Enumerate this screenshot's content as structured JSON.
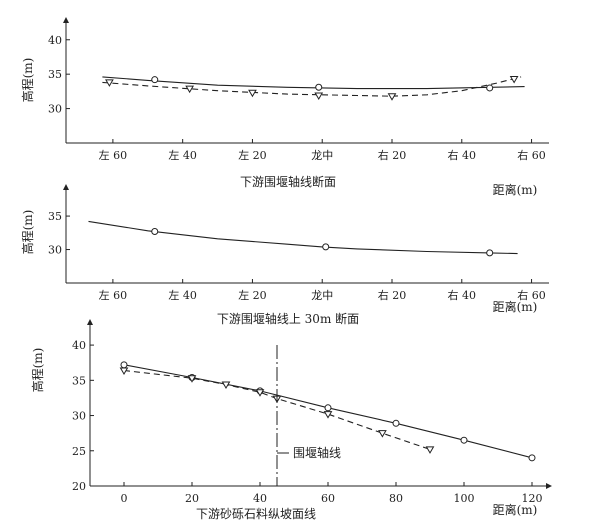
{
  "chart_data": [
    {
      "type": "line",
      "caption": "下游围堰轴线断面",
      "ylabel": "高程(m)",
      "xlabel": "距离(m)",
      "x_ticks": [
        "左 60",
        "左 40",
        "左 20",
        "龙中",
        "右 20",
        "右 40",
        "右 60"
      ],
      "y_ticks": [
        30,
        35,
        40
      ],
      "ylim": [
        25,
        42
      ],
      "xlim": [
        -70,
        65
      ],
      "series": [
        {
          "style": "solid",
          "marker": "circle",
          "x": [
            -63,
            -50,
            -30,
            -10,
            0,
            10,
            30,
            48,
            58
          ],
          "y": [
            34.6,
            34.1,
            33.4,
            33.1,
            33.0,
            32.9,
            32.9,
            33.1,
            33.2
          ],
          "marker_x": [
            -48,
            -1,
            48
          ],
          "marker_y": [
            34.2,
            33.1,
            33.0
          ]
        },
        {
          "style": "dashed",
          "marker": "triangle-down",
          "x": [
            -63,
            -50,
            -30,
            -10,
            0,
            10,
            20,
            30,
            40,
            50,
            57
          ],
          "y": [
            33.8,
            33.3,
            32.6,
            32.1,
            32.0,
            31.9,
            31.8,
            32.0,
            32.6,
            33.7,
            34.6
          ],
          "marker_x": [
            -61,
            -38,
            -20,
            -1,
            20,
            55
          ],
          "marker_y": [
            33.8,
            32.9,
            32.3,
            31.9,
            31.8,
            34.3
          ]
        }
      ]
    },
    {
      "type": "line",
      "caption": "下游围堰轴线上 30m 断面",
      "ylabel": "高程(m)",
      "xlabel": "距离(m)",
      "x_ticks": [
        "左 60",
        "左 40",
        "左 20",
        "龙中",
        "右 20",
        "右 40",
        "右 60"
      ],
      "y_ticks": [
        30,
        35
      ],
      "ylim": [
        25,
        38
      ],
      "xlim": [
        -70,
        65
      ],
      "series": [
        {
          "style": "solid",
          "marker": "circle",
          "x": [
            -67,
            -50,
            -30,
            -10,
            0,
            10,
            30,
            48,
            56
          ],
          "y": [
            34.2,
            32.8,
            31.6,
            30.8,
            30.4,
            30.1,
            29.7,
            29.5,
            29.4
          ],
          "marker_x": [
            -48,
            1,
            48
          ],
          "marker_y": [
            32.7,
            30.4,
            29.5
          ]
        }
      ]
    },
    {
      "type": "line",
      "caption": "下游砂砾石料纵坡面线",
      "ylabel": "高程(m)",
      "xlabel": "距离(m)",
      "x_ticks": [
        "0",
        "20",
        "40",
        "60",
        "80",
        "100",
        "120"
      ],
      "y_ticks": [
        20,
        25,
        30,
        35,
        40
      ],
      "ylim": [
        20,
        42
      ],
      "xlim": [
        -10,
        125
      ],
      "annotation": "围堰轴线",
      "annotation_x": 45,
      "series": [
        {
          "style": "solid",
          "marker": "circle",
          "x": [
            0,
            20,
            40,
            60,
            80,
            100,
            120
          ],
          "y": [
            37.2,
            35.4,
            33.5,
            31.1,
            28.9,
            26.5,
            24.0
          ]
        },
        {
          "style": "dashed",
          "marker": "triangle-down",
          "x": [
            0,
            20,
            30,
            40,
            45,
            60,
            76,
            90
          ],
          "y": [
            36.4,
            35.3,
            34.4,
            33.3,
            32.4,
            30.2,
            27.5,
            25.2
          ]
        }
      ]
    }
  ]
}
